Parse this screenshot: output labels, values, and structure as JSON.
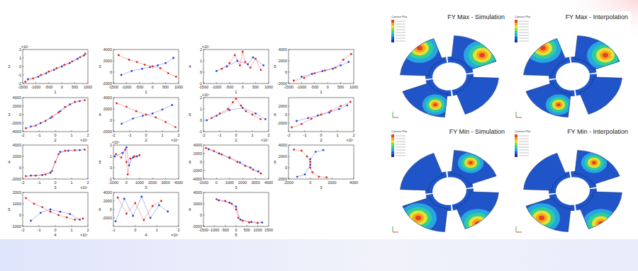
{
  "chart_data": [
    {
      "type": "scatter",
      "x_label": "1",
      "y_label": "2",
      "xlim": [
        -1500,
        1000
      ],
      "xticks": [
        -1500,
        -1000,
        -500,
        0,
        500,
        1000
      ],
      "ylim": [
        -2,
        2
      ],
      "yticks": [
        -2,
        -1,
        0,
        1,
        2
      ],
      "annotations": [
        {
          "text": "×10⁴",
          "axis": "y"
        }
      ],
      "series": [
        {
          "color": "#2040e0",
          "marker": "dot",
          "line_style": "solid",
          "x": [
            -1300,
            -900,
            -600,
            -300,
            0,
            300,
            600,
            850
          ],
          "values": [
            -1.5,
            -1.2,
            -0.8,
            -0.4,
            0,
            0.4,
            0.9,
            1.3
          ]
        },
        {
          "color": "#e02020",
          "marker": "dot",
          "line_style": "solid",
          "x": [
            -1400,
            -1100,
            -800,
            -500,
            -200,
            100,
            400,
            700,
            900
          ],
          "values": [
            -1.8,
            -1.4,
            -1,
            -0.6,
            -0.2,
            0.2,
            0.6,
            1.1,
            1.5
          ]
        }
      ]
    },
    {
      "type": "scatter",
      "x_label": "1",
      "y_label": "3",
      "xlim": [
        -1500,
        1000
      ],
      "xticks": [
        -1500,
        -1000,
        -500,
        0,
        500,
        1000
      ],
      "ylim": [
        -2000,
        4000
      ],
      "yticks": [
        -2000,
        0,
        2000,
        4000
      ],
      "series": [
        {
          "color": "#2040e0",
          "marker": "dot",
          "line_style": "solid",
          "x": [
            -1200,
            -800,
            -400,
            -100,
            200,
            500,
            800
          ],
          "values": [
            -500,
            200,
            600,
            900,
            1200,
            1600,
            2500
          ]
        },
        {
          "color": "#e02020",
          "marker": "dot",
          "line_style": "solid",
          "x": [
            -1300,
            -900,
            -600,
            -300,
            0,
            300,
            600,
            900
          ],
          "values": [
            3000,
            2200,
            1800,
            1300,
            1000,
            700,
            -200,
            -800
          ]
        }
      ]
    },
    {
      "type": "scatter",
      "x_label": "1",
      "y_label": "4",
      "xlim": [
        -1500,
        1000
      ],
      "xticks": [
        -1500,
        -1000,
        -500,
        0,
        500,
        1000
      ],
      "ylim": [
        -1,
        2
      ],
      "yticks": [
        -1,
        0,
        1,
        2
      ],
      "annotations": [
        {
          "text": "×10⁴",
          "axis": "y"
        }
      ],
      "series": [
        {
          "color": "#2040e0",
          "marker": "dot",
          "line_style": "solid",
          "x": [
            -1000,
            -600,
            -200,
            200,
            400,
            800
          ],
          "values": [
            0.1,
            0.5,
            1.0,
            0.7,
            1.3,
            0.6
          ]
        },
        {
          "color": "#e02020",
          "marker": "dot",
          "line_style": "solid",
          "x": [
            -800,
            -500,
            -300,
            -100,
            0,
            100,
            300,
            500,
            700
          ],
          "values": [
            0.3,
            0.8,
            1.5,
            0.6,
            1.8,
            0.9,
            0.4,
            1.2,
            0.2
          ]
        }
      ]
    },
    {
      "type": "scatter",
      "x_label": "1",
      "y_label": "5",
      "xlim": [
        -1500,
        1000
      ],
      "xticks": [
        -1500,
        -1000,
        -500,
        0,
        500,
        1000
      ],
      "ylim": [
        -2000,
        4000
      ],
      "yticks": [
        -2000,
        0,
        2000,
        4000
      ],
      "series": [
        {
          "color": "#2040e0",
          "marker": "dot",
          "line_style": "solid",
          "x": [
            -1000,
            -600,
            -200,
            200,
            500,
            800
          ],
          "values": [
            -800,
            -300,
            200,
            600,
            1200,
            1800
          ]
        },
        {
          "color": "#e02020",
          "marker": "dot",
          "line_style": "solid",
          "x": [
            -1300,
            -900,
            -500,
            -100,
            300,
            600,
            900
          ],
          "values": [
            -1500,
            -1000,
            -200,
            300,
            800,
            2200,
            3200
          ]
        }
      ]
    },
    {
      "type": "scatter",
      "x_label": "2",
      "y_label": "3",
      "xlim": [
        -2,
        2
      ],
      "xticks": [
        -2,
        -1,
        0,
        1,
        2
      ],
      "ylim": [
        -4000,
        4000
      ],
      "yticks": [
        -4000,
        -2000,
        0,
        2000,
        4000
      ],
      "annotations": [
        {
          "text": "×10⁴",
          "axis": "x"
        }
      ],
      "series": [
        {
          "color": "#2040e0",
          "marker": "dot",
          "line_style": "solid",
          "x": [
            -1.5,
            -0.9,
            -0.3,
            0.3,
            0.9,
            1.5
          ],
          "values": [
            -2800,
            -2000,
            -800,
            800,
            2400,
            3200
          ]
        },
        {
          "color": "#e02020",
          "marker": "dot",
          "line_style": "solid",
          "x": [
            -1.8,
            -1.2,
            -0.6,
            -0.2,
            0.2,
            0.6,
            1.2,
            1.8
          ],
          "values": [
            -3200,
            -2600,
            -1500,
            -500,
            500,
            1800,
            3000,
            3400
          ]
        }
      ]
    },
    {
      "type": "scatter",
      "x_label": "2",
      "y_label": "4",
      "xlim": [
        -2,
        2
      ],
      "xticks": [
        -2,
        -1,
        0,
        1,
        2
      ],
      "ylim": [
        -2000,
        4000
      ],
      "yticks": [
        -2000,
        0,
        2000,
        4000
      ],
      "annotations": [
        {
          "text": "×10⁴",
          "axis": "x"
        }
      ],
      "series": [
        {
          "color": "#2040e0",
          "marker": "dot",
          "line_style": "solid",
          "x": [
            -1.5,
            -0.8,
            -0.2,
            0.4,
            1.0,
            1.6
          ],
          "values": [
            -600,
            300,
            800,
            1200,
            1900,
            2700
          ]
        },
        {
          "color": "#e02020",
          "marker": "dot",
          "line_style": "solid",
          "x": [
            -1.8,
            -1.2,
            -0.6,
            0,
            0.6,
            1.2,
            1.8
          ],
          "values": [
            3000,
            2400,
            1600,
            1000,
            500,
            -300,
            -1200
          ]
        }
      ]
    },
    {
      "type": "scatter",
      "x_label": "2",
      "y_label": "5",
      "xlim": [
        -2,
        2
      ],
      "xticks": [
        -2,
        -1,
        0,
        1,
        2
      ],
      "ylim": [
        -1,
        2
      ],
      "yticks": [
        -1,
        0,
        1,
        2
      ],
      "annotations": [
        {
          "text": "×10⁴",
          "axis": "x"
        },
        {
          "text": "×10⁴",
          "axis": "y"
        }
      ],
      "series": [
        {
          "color": "#2040e0",
          "marker": "dot",
          "line_style": "solid",
          "x": [
            -1.8,
            -1.2,
            -0.4,
            0.4,
            1.2,
            1.8
          ],
          "values": [
            0,
            0.4,
            0.9,
            1.1,
            0.6,
            0.1
          ]
        },
        {
          "color": "#e02020",
          "marker": "dot",
          "line_style": "solid",
          "x": [
            -1.5,
            -1,
            -0.5,
            -0.2,
            0,
            0.3,
            0.6,
            1.0,
            1.5
          ],
          "values": [
            0.2,
            0.6,
            1.0,
            1.6,
            1.9,
            1.3,
            0.8,
            0.5,
            0.1
          ]
        }
      ]
    },
    {
      "type": "scatter",
      "x_label": "2",
      "y_label": "6",
      "xlim": [
        -2,
        2
      ],
      "xticks": [
        -2,
        -1,
        0,
        1,
        2
      ],
      "ylim": [
        -4000,
        4000
      ],
      "yticks": [
        -2000,
        0,
        2000
      ],
      "annotations": [
        {
          "text": "×10⁴",
          "axis": "x"
        }
      ],
      "series": [
        {
          "color": "#2040e0",
          "marker": "dot",
          "line_style": "solid",
          "x": [
            -1.5,
            -0.8,
            -0.2,
            0.5,
            1.1,
            1.6
          ],
          "values": [
            -1500,
            -800,
            -200,
            500,
            1300,
            2200
          ]
        },
        {
          "color": "#e02020",
          "marker": "dot",
          "line_style": "solid",
          "x": [
            -1.8,
            -1.2,
            -0.6,
            0,
            0.6,
            1.2,
            1.8
          ],
          "values": [
            -3000,
            -2200,
            -1000,
            0,
            900,
            2000,
            3000
          ]
        }
      ]
    },
    {
      "type": "scatter",
      "x_label": "3",
      "y_label": "4",
      "xlim": [
        -2,
        2
      ],
      "xticks": [
        -2,
        -1,
        0,
        1,
        2
      ],
      "ylim": [
        -2000,
        4000
      ],
      "yticks": [
        -2000,
        0,
        2000,
        4000
      ],
      "annotations": [
        {
          "text": "×10⁴",
          "axis": "x"
        }
      ],
      "series": [
        {
          "color": "#2040e0",
          "marker": "dot",
          "line_style": "solid",
          "x": [
            -1.5,
            -0.8,
            -0.3,
            0.3,
            0.8,
            1.5
          ],
          "values": [
            -1400,
            -1300,
            -900,
            2800,
            3000,
            3100
          ]
        },
        {
          "color": "#e02020",
          "marker": "dot",
          "line_style": "solid",
          "x": [
            -1.8,
            -1.2,
            -0.6,
            -0.2,
            0,
            0.2,
            0.6,
            1.2,
            1.8
          ],
          "values": [
            -1500,
            -1400,
            -1200,
            -600,
            1000,
            2400,
            3000,
            3100,
            3200
          ]
        }
      ]
    },
    {
      "type": "scatter",
      "x_label": "3",
      "y_label": "5",
      "xlim": [
        -1000,
        4000
      ],
      "xticks": [
        -1000,
        0,
        1000,
        2000,
        3000,
        4000
      ],
      "ylim": [
        -1,
        2
      ],
      "yticks": [
        -1,
        0,
        1,
        2
      ],
      "annotations": [
        {
          "text": "×10⁴",
          "axis": "y"
        }
      ],
      "series": [
        {
          "color": "#2040e0",
          "marker": "dot",
          "line_style": "solid",
          "x": [
            -900,
            -300,
            0,
            200,
            500,
            800
          ],
          "values": [
            1.0,
            1.3,
            1.8,
            0.2,
            0.9,
            1.0
          ]
        },
        {
          "color": "#e02020",
          "marker": "dot",
          "line_style": "solid",
          "x": [
            -800,
            -400,
            -100,
            0,
            100,
            300,
            600,
            1000
          ],
          "values": [
            1.2,
            0.9,
            1.6,
            0.5,
            -0.6,
            0.8,
            1.0,
            1.1
          ]
        }
      ]
    },
    {
      "type": "scatter",
      "x_label": "3",
      "y_label": "6",
      "xlim": [
        -1000,
        4000
      ],
      "xticks": [
        -1000,
        0,
        1000,
        2000,
        3000,
        4000
      ],
      "ylim": [
        -4000,
        4000
      ],
      "yticks": [
        -4000,
        -2000,
        0,
        2000,
        4000
      ],
      "series": [
        {
          "color": "#2040e0",
          "marker": "dot",
          "line_style": "solid",
          "x": [
            -600,
            200,
            1000,
            1800,
            2600,
            3200
          ],
          "values": [
            3000,
            2000,
            1100,
            -100,
            -1300,
            -2200
          ]
        },
        {
          "color": "#e02020",
          "marker": "dot",
          "line_style": "solid",
          "x": [
            -800,
            -200,
            400,
            1000,
            1600,
            2200,
            2800,
            3400
          ],
          "values": [
            3300,
            2600,
            1800,
            900,
            0,
            -900,
            -1800,
            -2700
          ]
        }
      ]
    },
    {
      "type": "scatter",
      "x_label": "3",
      "y_label": "6",
      "xlim": [
        -2000,
        4000
      ],
      "xticks": [
        -2000,
        0,
        2000,
        4000
      ],
      "ylim": [
        -2000,
        4000
      ],
      "yticks": [
        -2000,
        0,
        2000,
        4000
      ],
      "series": [
        {
          "color": "#2040e0",
          "marker": "dot",
          "line_style": "solid",
          "x": [
            -1200,
            -500,
            0,
            0,
            500,
            1200
          ],
          "values": [
            -1600,
            -1200,
            500,
            1500,
            2800,
            3100
          ]
        },
        {
          "color": "#e02020",
          "marker": "dot",
          "line_style": "solid",
          "x": [
            -1500,
            -800,
            -300,
            0,
            0,
            200,
            800,
            1500
          ],
          "values": [
            3200,
            3000,
            2000,
            1000,
            0,
            -800,
            -1600,
            -1700
          ]
        }
      ]
    },
    {
      "type": "scatter",
      "x_label": "4",
      "y_label": "5",
      "xlim": [
        -2,
        2
      ],
      "xticks": [
        -2,
        -1,
        0,
        1,
        2
      ],
      "ylim": [
        -1000,
        2000
      ],
      "yticks": [
        -1000,
        0,
        1000,
        2000
      ],
      "annotations": [
        {
          "text": "×10⁴",
          "axis": "x"
        }
      ],
      "series": [
        {
          "color": "#2040e0",
          "marker": "dot",
          "line_style": "solid",
          "x": [
            -1.5,
            -0.9,
            -0.3,
            0.3,
            0.9,
            1.5
          ],
          "values": [
            -500,
            200,
            500,
            300,
            100,
            -400
          ]
        },
        {
          "color": "#e02020",
          "marker": "dot",
          "line_style": "solid",
          "x": [
            -1.8,
            -1.3,
            -0.8,
            -0.3,
            0.2,
            0.7,
            1.2,
            1.7
          ],
          "values": [
            1500,
            1000,
            700,
            300,
            0,
            -200,
            -400,
            -300
          ]
        }
      ]
    },
    {
      "type": "scatter",
      "x_label": "4",
      "y_label": "6",
      "xlim": [
        -1,
        2
      ],
      "xticks": [
        -1,
        0,
        1,
        2
      ],
      "ylim": [
        -4000,
        4000
      ],
      "yticks": [
        -2000,
        0,
        2000,
        4000
      ],
      "annotations": [
        {
          "text": "×10⁴",
          "axis": "x"
        }
      ],
      "series": [
        {
          "color": "#2040e0",
          "marker": "dot",
          "line_style": "solid",
          "x": [
            -0.9,
            -0.5,
            -0.1,
            0.3,
            0.7,
            1.1,
            1.5
          ],
          "values": [
            -2800,
            2500,
            -1500,
            3000,
            -2000,
            1000,
            -500
          ]
        },
        {
          "color": "#e02020",
          "marker": "dot",
          "line_style": "solid",
          "x": [
            -0.8,
            -0.4,
            0,
            0.4,
            0.8,
            1.2
          ],
          "values": [
            2800,
            -1000,
            1500,
            -2500,
            800,
            2000
          ]
        }
      ]
    },
    {
      "type": "scatter",
      "x_label": "5",
      "y_label": "6",
      "xlim": [
        -1500,
        1500
      ],
      "xticks": [
        -1500,
        -1000,
        -500,
        0,
        500,
        1000,
        1500
      ],
      "ylim": [
        -2000,
        4000
      ],
      "yticks": [
        -2000,
        0,
        2000,
        4000
      ],
      "series": [
        {
          "color": "#2040e0",
          "marker": "dot",
          "line_style": "solid",
          "x": [
            -800,
            -300,
            0,
            200,
            700,
            1200
          ],
          "values": [
            2600,
            2200,
            1500,
            -800,
            -1200,
            -1300
          ]
        },
        {
          "color": "#e02020",
          "marker": "dot",
          "line_style": "solid",
          "x": [
            -900,
            -500,
            -200,
            0,
            100,
            300,
            600,
            1000
          ],
          "values": [
            2800,
            2500,
            2000,
            1000,
            -500,
            -1000,
            -1300,
            -1400
          ]
        }
      ]
    }
  ],
  "contour_panels": [
    {
      "title": "FY Max - Simulation",
      "legend_title": "Contour Plot"
    },
    {
      "title": "FY Max - Interpolation",
      "legend_title": "Contour Plot"
    },
    {
      "title": "FY Min - Simulation",
      "legend_title": "Contour Plot"
    },
    {
      "title": "FY Min - Interpolation",
      "legend_title": "Contour Plot"
    }
  ]
}
